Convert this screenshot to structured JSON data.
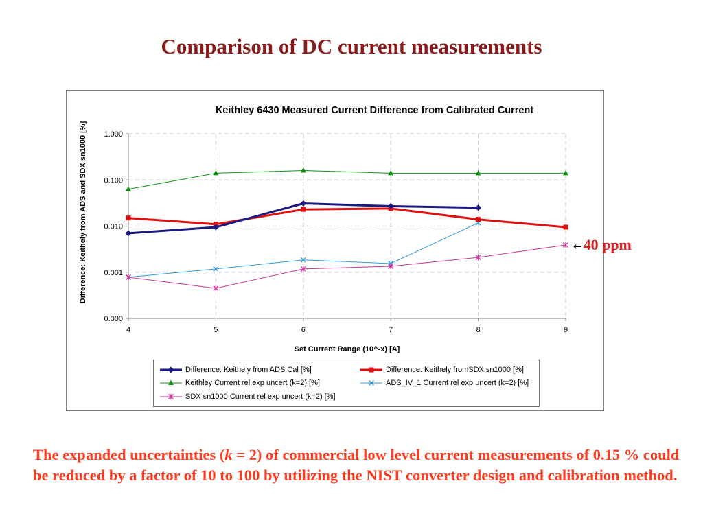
{
  "slide_title": "Comparison of DC current measurements",
  "annotation": {
    "arrow": "←",
    "text": "40 ppm"
  },
  "bottom_text": {
    "part1": "The expanded uncertainties (",
    "k": "k",
    "part2": " = 2) of commercial low level current measurements of 0.15 % could be reduced by a factor of 10 to 100 by utilizing the NIST converter design and calibration method."
  },
  "chart_data": {
    "type": "line",
    "title": "Keithley 6430 Measured Current Difference from Calibrated Current",
    "xlabel": "Set Current Range (10^-x) [A]",
    "ylabel": "Difference: Keithely from ADS and SDX sn1000 [%]",
    "x_scale": "linear",
    "y_scale": "log",
    "xlim": [
      4,
      9
    ],
    "ylim": [
      0.0001,
      1.0
    ],
    "x_ticks": [
      4,
      5,
      6,
      7,
      8,
      9
    ],
    "x_tick_labels": [
      "4",
      "5",
      "6",
      "7",
      "8",
      "9"
    ],
    "y_ticks": [
      0.0001,
      0.001,
      0.01,
      0.1,
      1.0
    ],
    "y_tick_labels": [
      "0.000",
      "0.001",
      "0.010",
      "0.100",
      "1.000"
    ],
    "grid": true,
    "legend_position": "bottom",
    "series": [
      {
        "name": "Difference: Keithely from ADS Cal [%]",
        "color": "#1a1a80",
        "marker": "diamond",
        "line_width": 3,
        "x": [
          4,
          5,
          6,
          7,
          8
        ],
        "y": [
          0.007,
          0.0095,
          0.031,
          0.027,
          0.025
        ]
      },
      {
        "name": "Difference: Keithely fromSDX sn1000 [%]",
        "color": "#e01010",
        "marker": "square",
        "line_width": 3,
        "x": [
          4,
          5,
          6,
          7,
          8,
          9
        ],
        "y": [
          0.015,
          0.011,
          0.023,
          0.024,
          0.014,
          0.0095
        ]
      },
      {
        "name": "Keithley Current rel exp uncert (k=2) [%]",
        "color": "#109010",
        "marker": "triangle",
        "line_width": 1,
        "x": [
          4,
          5,
          6,
          7,
          8,
          9
        ],
        "y": [
          0.063,
          0.14,
          0.16,
          0.14,
          0.14,
          0.14
        ]
      },
      {
        "name": "ADS_IV_1 Current rel exp uncert (k=2) [%]",
        "color": "#3399dd",
        "marker": "x",
        "line_width": 1,
        "x": [
          4,
          5,
          6,
          7,
          8
        ],
        "y": [
          0.00078,
          0.00118,
          0.00185,
          0.00155,
          0.0118
        ]
      },
      {
        "name": "SDX sn1000 Current rel exp uncert (k=2) [%]",
        "color": "#cc3399",
        "marker": "star",
        "line_width": 1,
        "x": [
          4,
          5,
          6,
          7,
          8,
          9
        ],
        "y": [
          0.00078,
          0.00045,
          0.00118,
          0.00135,
          0.0021,
          0.0039
        ]
      }
    ]
  }
}
